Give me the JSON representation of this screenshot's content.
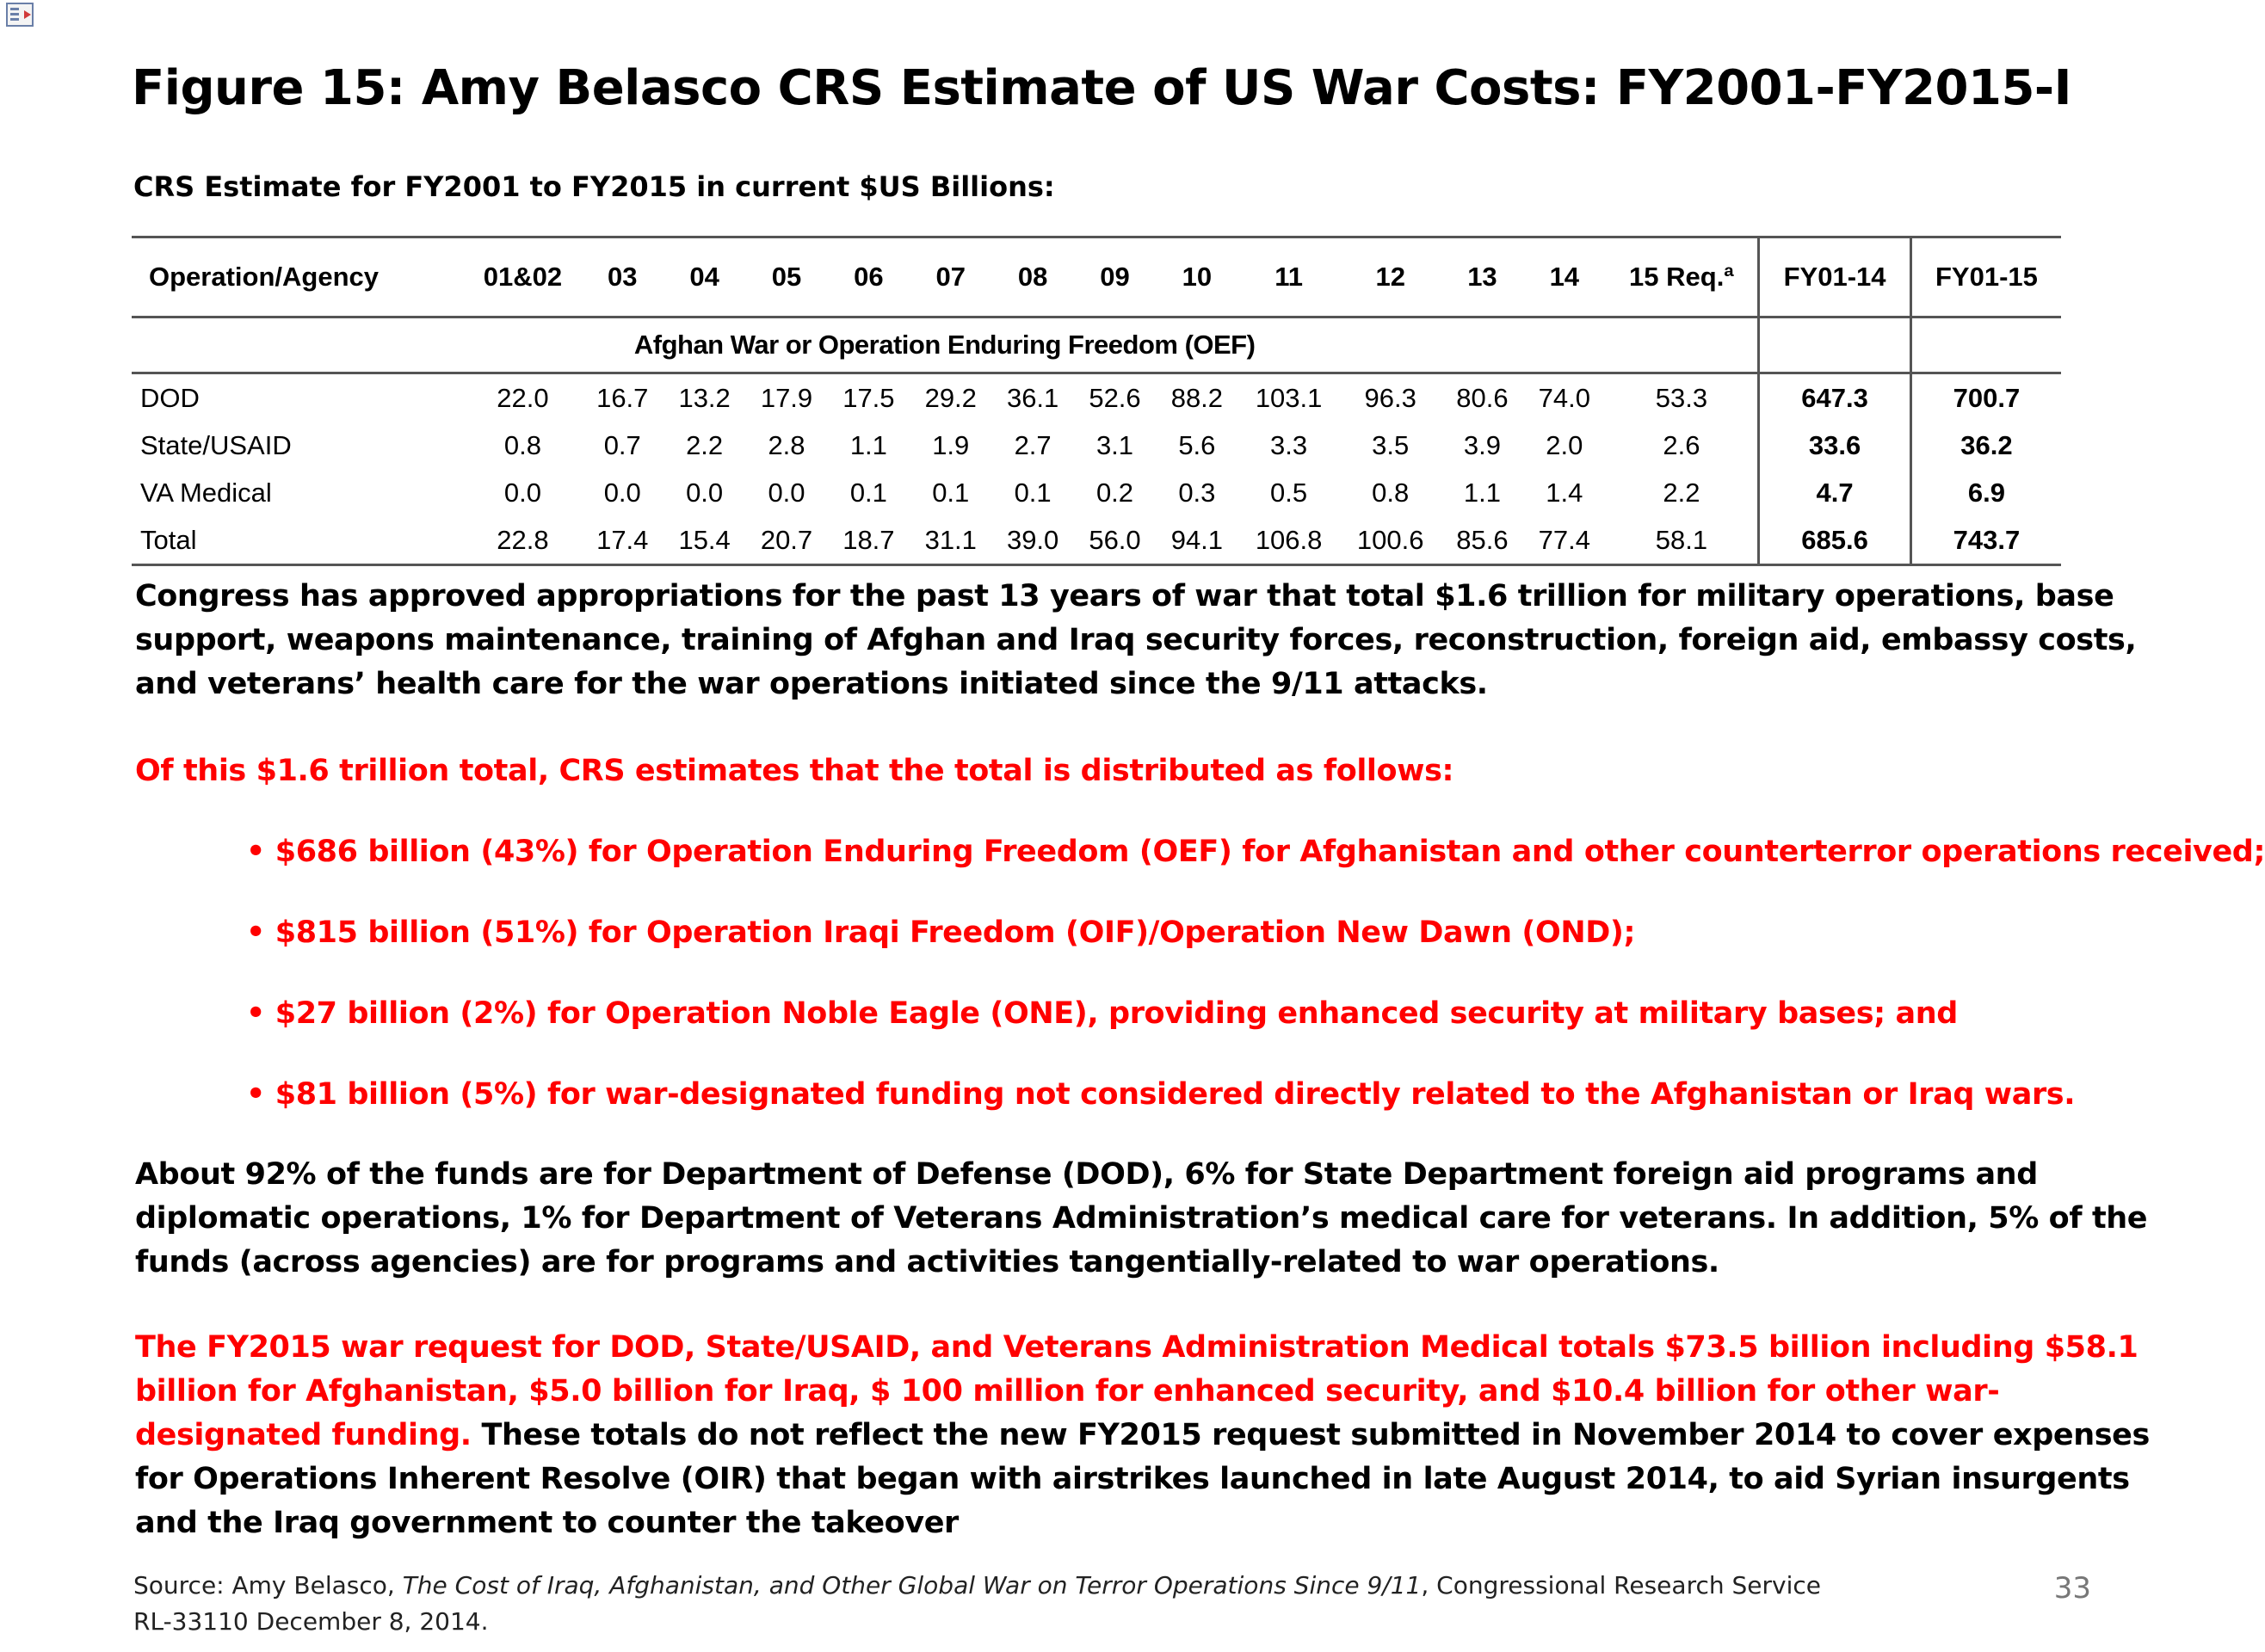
{
  "title": "Figure 15: Amy Belasco CRS Estimate of US War Costs: FY2001-FY2015-I",
  "subtitle": "CRS Estimate for FY2001 to FY2015 in current $US Billions:",
  "table": {
    "headers": [
      "Operation/Agency",
      "01&02",
      "03",
      "04",
      "05",
      "06",
      "07",
      "08",
      "09",
      "10",
      "11",
      "12",
      "13",
      "14",
      "15 Req.ª",
      "FY01-14",
      "FY01-15"
    ],
    "section_title": "Afghan War or Operation Enduring Freedom (OEF)",
    "rows": [
      {
        "agency": "DOD",
        "values": [
          "22.0",
          "16.7",
          "13.2",
          "17.9",
          "17.5",
          "29.2",
          "36.1",
          "52.6",
          "88.2",
          "103.1",
          "96.3",
          "80.6",
          "74.0",
          "53.3",
          "647.3",
          "700.7"
        ]
      },
      {
        "agency": "State/USAID",
        "values": [
          "0.8",
          "0.7",
          "2.2",
          "2.8",
          "1.1",
          "1.9",
          "2.7",
          "3.1",
          "5.6",
          "3.3",
          "3.5",
          "3.9",
          "2.0",
          "2.6",
          "33.6",
          "36.2"
        ]
      },
      {
        "agency": "VA Medical",
        "values": [
          "0.0",
          "0.0",
          "0.0",
          "0.0",
          "0.1",
          "0.1",
          "0.1",
          "0.2",
          "0.3",
          "0.5",
          "0.8",
          "1.1",
          "1.4",
          "2.2",
          "4.7",
          "6.9"
        ]
      },
      {
        "agency": "Total",
        "values": [
          "22.8",
          "17.4",
          "15.4",
          "20.7",
          "18.7",
          "31.1",
          "39.0",
          "56.0",
          "94.1",
          "106.8",
          "100.6",
          "85.6",
          "77.4",
          "58.1",
          "685.6",
          "743.7"
        ]
      }
    ]
  },
  "paragraph1": "Congress has approved appropriations for the past 13 years of war that total $1.6 trillion for military operations, base support, weapons maintenance, training of Afghan and Iraq security forces, reconstruction, foreign aid, embassy costs, and veterans’ health care for the war operations initiated since the 9/11 attacks.",
  "paragraph2": "Of this $1.6 trillion total, CRS estimates that the total is distributed as follows:",
  "bullets": [
    "• $686 billion (43%) for Operation Enduring Freedom (OEF) for Afghanistan and other counterterror operations received;",
    "• $815 billion (51%) for Operation Iraqi Freedom (OIF)/Operation New Dawn (OND);",
    "• $27 billion (2%) for Operation Noble Eagle (ONE), providing enhanced security at military bases; and",
    "• $81 billion (5%) for war-designated funding not considered directly related to the Afghanistan or Iraq wars."
  ],
  "paragraph3": "About 92% of the funds are for Department of Defense (DOD), 6% for State Department foreign aid programs and diplomatic operations, 1% for Department of Veterans Administration’s medical care for veterans. In addition, 5% of the funds (across agencies) are for programs and activities tangentially-related to war operations.",
  "paragraph4_red": "The FY2015 war request for DOD, State/USAID, and Veterans Administration Medical totals $73.5 billion including $58.1 billion for Afghanistan, $5.0 billion for Iraq, $ 100 million for enhanced security, and $10.4 billion for other war-designated funding.",
  "paragraph4_black": " These totals do not reflect the new FY2015 request submitted in November 2014 to cover expenses for Operations Inherent Resolve (OIR) that began with airstrikes launched in late August 2014, to aid Syrian insurgents and the Iraq government to counter the takeover",
  "source": {
    "prefix": "Source: Amy Belasco, ",
    "italic": "The Cost of Iraq, Afghanistan, and Other Global War on Terror Operations Since 9/11",
    "suffix": ", Congressional Research Service RL-33110  December 8, 2014."
  },
  "page_number": "33",
  "colors": {
    "red": "#ff0000",
    "text": "#000000",
    "rule": "#555555",
    "page_number": "#777777"
  },
  "icons": {
    "corner": "slide-thumbnail-icon"
  }
}
